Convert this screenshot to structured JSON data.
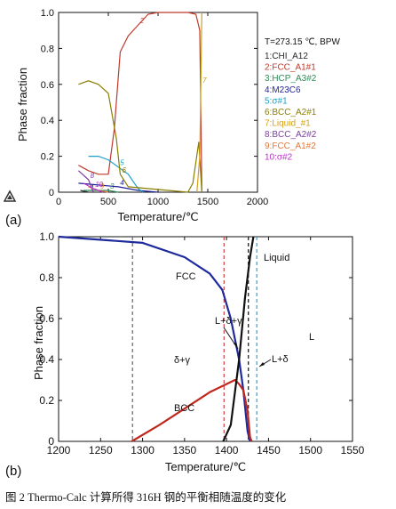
{
  "chart_data": [
    {
      "type": "line",
      "panel_label": "(a)",
      "xlabel": "Temperature/℃",
      "ylabel": "Phase fraction",
      "xlim": [
        0,
        2000
      ],
      "ylim": [
        0,
        1.0
      ],
      "x_ticks": [
        0,
        500,
        1000,
        1500,
        2000
      ],
      "y_ticks": [
        0,
        0.2,
        0.4,
        0.6,
        0.8,
        1.0
      ],
      "conditions": "T=273.15 ℃, BPW",
      "legend_placement": "right",
      "series": [
        {
          "name": "1:CHI_A12",
          "color": "#2a2a2a",
          "label": "1",
          "points": [
            [
              220,
              0.01
            ],
            [
              300,
              0.0
            ]
          ]
        },
        {
          "name": "2:FCC_A1#1",
          "color": "#c0392b",
          "label": "2",
          "points": [
            [
              200,
              0.15
            ],
            [
              300,
              0.12
            ],
            [
              400,
              0.1
            ],
            [
              500,
              0.1
            ],
            [
              560,
              0.35
            ],
            [
              620,
              0.78
            ],
            [
              700,
              0.87
            ],
            [
              800,
              0.93
            ],
            [
              900,
              0.99
            ],
            [
              1000,
              1.0
            ],
            [
              1300,
              1.0
            ],
            [
              1380,
              0.99
            ],
            [
              1420,
              0.9
            ],
            [
              1440,
              0.01
            ]
          ]
        },
        {
          "name": "3:HCP_A3#2",
          "color": "#2e8b57",
          "label": "3",
          "points": [
            [
              250,
              0.01
            ],
            [
              400,
              0.01
            ],
            [
              500,
              0.01
            ],
            [
              600,
              0.0
            ]
          ]
        },
        {
          "name": "4:M23C6",
          "color": "#1f1f99",
          "label": "4",
          "points": [
            [
              200,
              0.05
            ],
            [
              400,
              0.04
            ],
            [
              600,
              0.03
            ],
            [
              800,
              0.01
            ],
            [
              1000,
              0.0
            ]
          ]
        },
        {
          "name": "5:σ#1",
          "color": "#1aa0c8",
          "label": "5",
          "points": [
            [
              300,
              0.2
            ],
            [
              400,
              0.2
            ],
            [
              500,
              0.18
            ],
            [
              600,
              0.14
            ],
            [
              700,
              0.1
            ],
            [
              800,
              0.02
            ],
            [
              850,
              0.0
            ]
          ]
        },
        {
          "name": "6:BCC_A2#1",
          "color": "#8b7d00",
          "label": "6",
          "points": [
            [
              200,
              0.6
            ],
            [
              300,
              0.62
            ],
            [
              400,
              0.6
            ],
            [
              500,
              0.55
            ],
            [
              580,
              0.3
            ],
            [
              620,
              0.1
            ],
            [
              700,
              0.03
            ],
            [
              1300,
              0.0
            ],
            [
              1350,
              0.05
            ],
            [
              1410,
              0.28
            ],
            [
              1440,
              0.0
            ]
          ]
        },
        {
          "name": "7:Liquid_#1",
          "color": "#d4a017",
          "label": "7",
          "points": [
            [
              1390,
              0.0
            ],
            [
              1420,
              0.2
            ],
            [
              1430,
              0.6
            ],
            [
              1440,
              1.0
            ]
          ]
        },
        {
          "name": "8:BCC_A2#2",
          "color": "#7b3fa0",
          "label": "8",
          "points": [
            [
              200,
              0.12
            ],
            [
              300,
              0.07
            ],
            [
              350,
              0.0
            ]
          ]
        },
        {
          "name": "9:FCC_A1#2",
          "color": "#e07a3a",
          "label": "9",
          "points": [
            [
              300,
              0.03
            ],
            [
              400,
              0.01
            ],
            [
              500,
              0.0
            ]
          ]
        },
        {
          "name": "10:σ#2",
          "color": "#b832c8",
          "label": "10",
          "points": [
            [
              250,
              0.05
            ],
            [
              350,
              0.02
            ],
            [
              450,
              0.0
            ]
          ]
        }
      ]
    },
    {
      "type": "line",
      "panel_label": "(b)",
      "xlabel": "Temperature/℃",
      "ylabel": "Phase fraction",
      "xlim": [
        1200,
        1550
      ],
      "ylim": [
        0,
        1.0
      ],
      "x_ticks": [
        1200,
        1250,
        1300,
        1350,
        1400,
        1450,
        1500,
        1550
      ],
      "y_ticks": [
        0,
        0.2,
        0.4,
        0.6,
        0.8,
        1.0
      ],
      "series": [
        {
          "name": "FCC",
          "color": "#1f2a9c",
          "points": [
            [
              1200,
              1.0
            ],
            [
              1300,
              0.97
            ],
            [
              1350,
              0.9
            ],
            [
              1380,
              0.82
            ],
            [
              1395,
              0.74
            ],
            [
              1405,
              0.6
            ],
            [
              1415,
              0.4
            ],
            [
              1420,
              0.25
            ],
            [
              1425,
              0.05
            ],
            [
              1428,
              0.0
            ]
          ]
        },
        {
          "name": "BCC",
          "color": "#c0281e",
          "points": [
            [
              1287,
              0.0
            ],
            [
              1320,
              0.08
            ],
            [
              1350,
              0.16
            ],
            [
              1380,
              0.24
            ],
            [
              1400,
              0.28
            ],
            [
              1410,
              0.3
            ],
            [
              1415,
              0.28
            ],
            [
              1420,
              0.25
            ],
            [
              1425,
              0.15
            ],
            [
              1428,
              0.02
            ],
            [
              1430,
              0.0
            ]
          ]
        },
        {
          "name": "Liquid",
          "color": "#111111",
          "points": [
            [
              1396,
              0.0
            ],
            [
              1405,
              0.08
            ],
            [
              1415,
              0.4
            ],
            [
              1422,
              0.7
            ],
            [
              1428,
              0.9
            ],
            [
              1432,
              1.0
            ]
          ]
        }
      ],
      "vlines": [
        {
          "x": 1288,
          "color": "#666666"
        },
        {
          "x": 1397,
          "color": "#d04040"
        },
        {
          "x": 1426,
          "color": "#111111"
        },
        {
          "x": 1436,
          "color": "#2aa6d0"
        }
      ],
      "annotations": {
        "fcc": "FCC",
        "liquid": "Liquid",
        "l_delta_gamma": "L+δ+γ",
        "delta_gamma": "δ+γ",
        "l_delta": "L+δ",
        "l": "L",
        "bcc": "BCC"
      }
    }
  ],
  "caption": "图 2 Thermo-Calc 计算所得 316H 钢的平衡相随温度的变化"
}
